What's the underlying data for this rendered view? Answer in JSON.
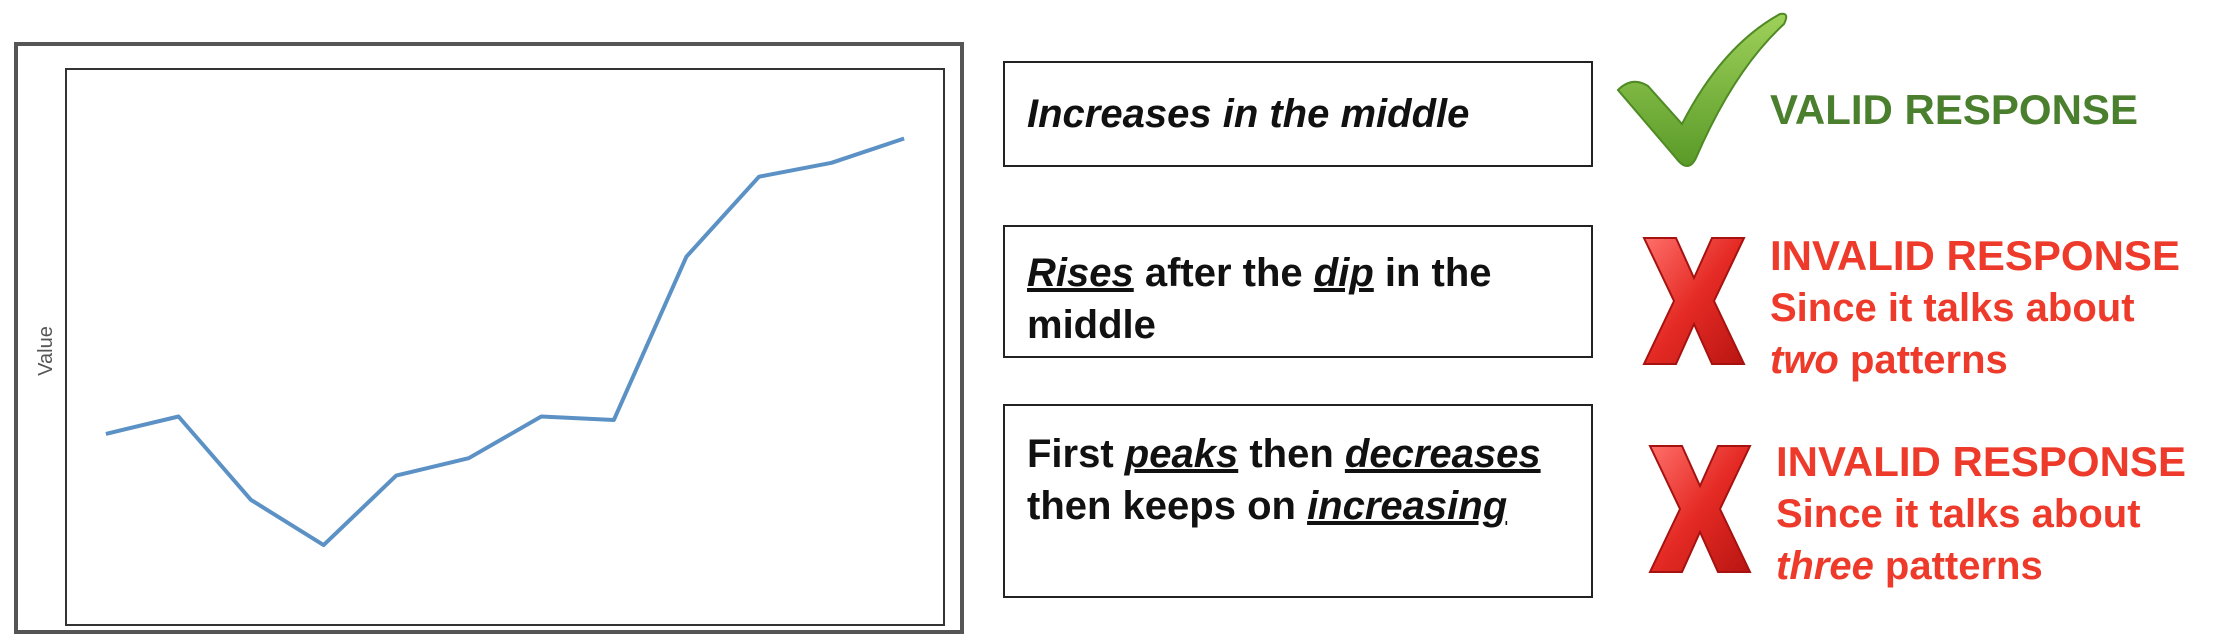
{
  "chart_data": {
    "type": "line",
    "ylabel": "Value",
    "xlabel": "",
    "x": [
      1,
      2,
      3,
      4,
      5,
      6,
      7,
      8,
      9,
      10,
      11,
      12
    ],
    "values": [
      5.5,
      6.0,
      3.6,
      2.3,
      4.3,
      4.8,
      6.0,
      5.9,
      10.6,
      12.9,
      13.3,
      14.0
    ],
    "ylim": [
      0,
      16
    ],
    "xlim": [
      0.45,
      12.55
    ],
    "grid": false,
    "line_color": "#5b91c5"
  },
  "responses": [
    {
      "parts": [
        {
          "text": "Increases in the middle",
          "style": "i"
        }
      ]
    },
    {
      "parts": [
        {
          "text": "Rises",
          "style": "u"
        },
        {
          "text": " after the ",
          "style": ""
        },
        {
          "text": "dip",
          "style": "u"
        },
        {
          "text": " in the middle",
          "style": ""
        }
      ]
    },
    {
      "parts": [
        {
          "text": "First ",
          "style": ""
        },
        {
          "text": "peaks",
          "style": "u"
        },
        {
          "text": " then ",
          "style": ""
        },
        {
          "text": "decreases",
          "style": "u"
        },
        {
          "text": " then keeps on ",
          "style": ""
        },
        {
          "text": "increasing",
          "style": "u"
        }
      ]
    }
  ],
  "verdicts": {
    "valid": {
      "title": "VALID RESPONSE",
      "icon": "checkmark-icon",
      "color": "#4a7f2e"
    },
    "invalid2": {
      "title": "INVALID RESPONSE",
      "line1": "Since it talks about",
      "emph": "two",
      "rest": " patterns",
      "icon": "cross-icon",
      "color": "#ee3a2a"
    },
    "invalid3": {
      "title": "INVALID RESPONSE",
      "line1": "Since it talks about",
      "emph": "three",
      "rest": " patterns",
      "icon": "cross-icon",
      "color": "#ee3a2a"
    }
  }
}
